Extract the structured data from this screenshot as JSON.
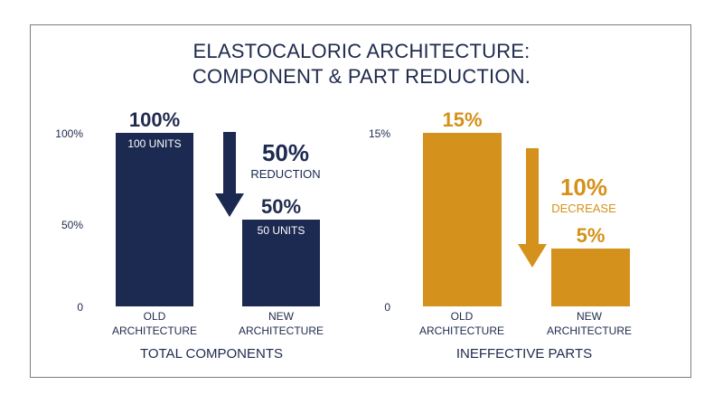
{
  "title_line1": "ELASTOCALORIC ARCHITECTURE:",
  "title_line2": "COMPONENT & PART REDUCTION.",
  "colors": {
    "navy": "#1c2951",
    "gold": "#d4911b",
    "text": "#1f2a4d"
  },
  "chart_data": [
    {
      "type": "bar",
      "xlabel": "TOTAL COMPONENTS",
      "categories": [
        [
          "OLD",
          "ARCHITECTURE"
        ],
        [
          "NEW",
          "ARCHITECTURE"
        ]
      ],
      "values": [
        100,
        50
      ],
      "value_labels": [
        "100%",
        "50%"
      ],
      "inner_labels": [
        "100 UNITS",
        "50 UNITS"
      ],
      "yticks": [
        "100%",
        "50%",
        "0"
      ],
      "ylim": [
        0,
        100
      ],
      "annotation": {
        "value": "50%",
        "text": "REDUCTION"
      },
      "color": "#1c2951"
    },
    {
      "type": "bar",
      "xlabel": "INEFFECTIVE PARTS",
      "categories": [
        [
          "OLD",
          "ARCHITECTURE"
        ],
        [
          "NEW",
          "ARCHITECTURE"
        ]
      ],
      "values": [
        15,
        5
      ],
      "value_labels": [
        "15%",
        "5%"
      ],
      "yticks": [
        "15%",
        "0"
      ],
      "ylim": [
        0,
        15
      ],
      "annotation": {
        "value": "10%",
        "text": "DECREASE"
      },
      "color": "#d4911b"
    }
  ]
}
